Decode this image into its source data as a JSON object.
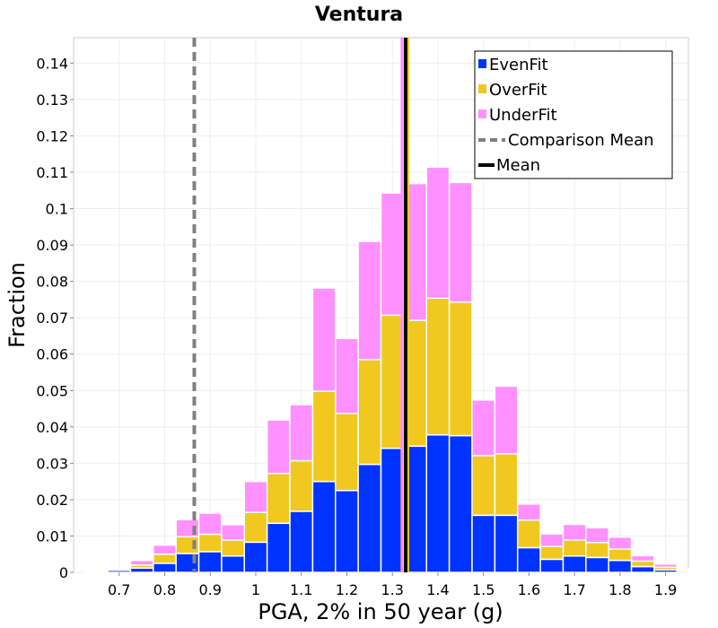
{
  "chart_data": {
    "type": "bar",
    "title": "Ventura",
    "xlabel": "PGA, 2% in 50 year (g)",
    "ylabel": "Fraction",
    "xlim": [
      0.6,
      1.95
    ],
    "ylim": [
      0,
      0.147
    ],
    "bin_width": 0.05,
    "x_ticks": [
      0.7,
      0.8,
      0.9,
      1,
      1.1,
      1.2,
      1.3,
      1.4,
      1.5,
      1.6,
      1.7,
      1.8,
      1.9
    ],
    "x_tick_labels": [
      "0.7",
      "0.8",
      "0.9",
      "1",
      "1.1",
      "1.2",
      "1.3",
      "1.4",
      "1.5",
      "1.6",
      "1.7",
      "1.8",
      "1.9"
    ],
    "y_ticks": [
      0,
      0.01,
      0.02,
      0.03,
      0.04,
      0.05,
      0.06,
      0.07,
      0.08,
      0.09,
      0.1,
      0.11,
      0.12,
      0.13,
      0.14
    ],
    "y_tick_labels": [
      "0",
      "0.01",
      "0.02",
      "0.03",
      "0.04",
      "0.05",
      "0.06",
      "0.07",
      "0.08",
      "0.09",
      "0.1",
      "0.11",
      "0.12",
      "0.13",
      "0.14"
    ],
    "grid": true,
    "stacked": true,
    "legend_position": "top-right",
    "bin_centers": [
      0.65,
      0.7,
      0.75,
      0.8,
      0.85,
      0.9,
      0.95,
      1.0,
      1.05,
      1.1,
      1.15,
      1.2,
      1.25,
      1.3,
      1.35,
      1.4,
      1.45,
      1.5,
      1.55,
      1.6,
      1.65,
      1.7,
      1.75,
      1.8,
      1.85,
      1.9,
      1.95
    ],
    "series": [
      {
        "name": "EvenFit",
        "color": "#0033ff",
        "values": [
          0.0002,
          0.0006,
          0.0012,
          0.0025,
          0.0052,
          0.0057,
          0.0045,
          0.0083,
          0.0135,
          0.0168,
          0.025,
          0.0225,
          0.0297,
          0.0341,
          0.0347,
          0.0378,
          0.0376,
          0.0157,
          0.0157,
          0.0068,
          0.0036,
          0.0045,
          0.0041,
          0.0033,
          0.0016,
          0.0007,
          0.0004
        ]
      },
      {
        "name": "OverFit",
        "color": "#f0c820",
        "values": [
          0.0001,
          0.0002,
          0.0008,
          0.0025,
          0.0046,
          0.0048,
          0.0044,
          0.0082,
          0.0137,
          0.0139,
          0.0248,
          0.0212,
          0.0288,
          0.0366,
          0.0346,
          0.0376,
          0.0367,
          0.0164,
          0.0169,
          0.0076,
          0.0035,
          0.0044,
          0.0041,
          0.0031,
          0.0015,
          0.0007,
          0.0004
        ]
      },
      {
        "name": "UnderFit",
        "color": "#ff90ff",
        "values": [
          0.0001,
          0.0002,
          0.0013,
          0.0025,
          0.0047,
          0.0058,
          0.0042,
          0.0085,
          0.0147,
          0.0154,
          0.0284,
          0.0206,
          0.0325,
          0.0336,
          0.0376,
          0.036,
          0.0329,
          0.0153,
          0.0186,
          0.0044,
          0.0035,
          0.0043,
          0.0041,
          0.0033,
          0.0015,
          0.0009,
          0.0004
        ]
      }
    ],
    "lines": [
      {
        "name": "Comparison Mean",
        "x": 0.865,
        "color": "#808080",
        "style": "dashed"
      },
      {
        "name": "Mean",
        "x": 1.329,
        "color": "#000000",
        "style": "solid"
      }
    ],
    "marker_lines": [
      {
        "x": 1.321,
        "color": "#ff90ff"
      },
      {
        "x": 1.334,
        "color": "#f0c820"
      }
    ]
  }
}
